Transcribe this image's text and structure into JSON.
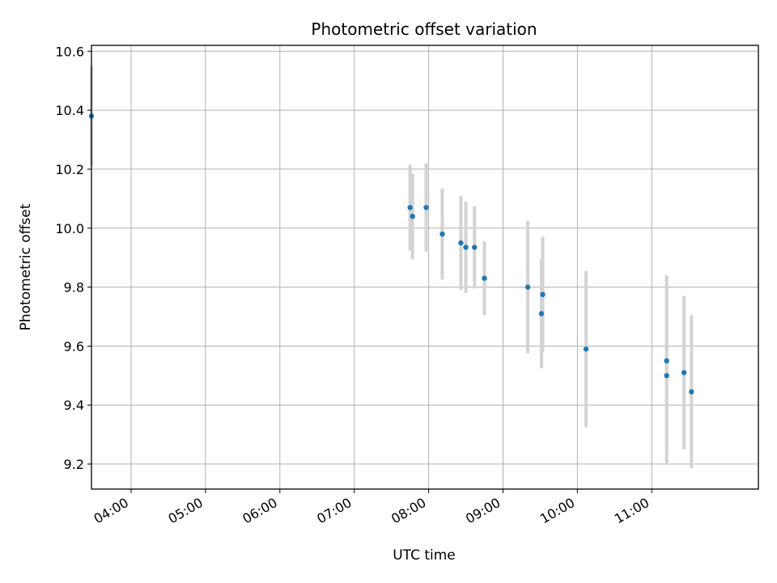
{
  "chart_data": {
    "type": "scatter",
    "title": "Photometric offset variation",
    "xlabel": "UTC time",
    "ylabel": "Photometric offset",
    "x_ticks": [
      "04:00",
      "05:00",
      "06:00",
      "07:00",
      "08:00",
      "09:00",
      "10:00",
      "11:00"
    ],
    "y_ticks": [
      "9.2",
      "9.4",
      "9.6",
      "9.8",
      "10.0",
      "10.2",
      "10.4",
      "10.6"
    ],
    "xlim": [
      "03:28",
      "12:26"
    ],
    "ylim": [
      9.115,
      10.62
    ],
    "grid": true,
    "colors": {
      "point": "#1f77b4",
      "errorbar": "#d3d3d3",
      "grid": "#b0b0b0"
    },
    "series": [
      {
        "points": [
          {
            "x": "03:28",
            "y": 10.38,
            "err": 0.17
          },
          {
            "x": "07:45",
            "y": 10.07,
            "err": 0.145
          },
          {
            "x": "07:47",
            "y": 10.04,
            "err": 0.145
          },
          {
            "x": "07:58",
            "y": 10.07,
            "err": 0.15
          },
          {
            "x": "08:11",
            "y": 9.98,
            "err": 0.155
          },
          {
            "x": "08:26",
            "y": 9.95,
            "err": 0.16
          },
          {
            "x": "08:30",
            "y": 9.935,
            "err": 0.155
          },
          {
            "x": "08:37",
            "y": 9.935,
            "err": 0.14
          },
          {
            "x": "08:45",
            "y": 9.83,
            "err": 0.125
          },
          {
            "x": "09:20",
            "y": 9.8,
            "err": 0.225
          },
          {
            "x": "09:31",
            "y": 9.71,
            "err": 0.185
          },
          {
            "x": "09:32",
            "y": 9.775,
            "err": 0.195
          },
          {
            "x": "10:07",
            "y": 9.59,
            "err": 0.265
          },
          {
            "x": "11:12",
            "y": 9.55,
            "err": 0.29
          },
          {
            "x": "11:12",
            "y": 9.5,
            "err": 0.3
          },
          {
            "x": "11:26",
            "y": 9.51,
            "err": 0.26
          },
          {
            "x": "11:32",
            "y": 9.445,
            "err": 0.26
          }
        ]
      }
    ]
  }
}
